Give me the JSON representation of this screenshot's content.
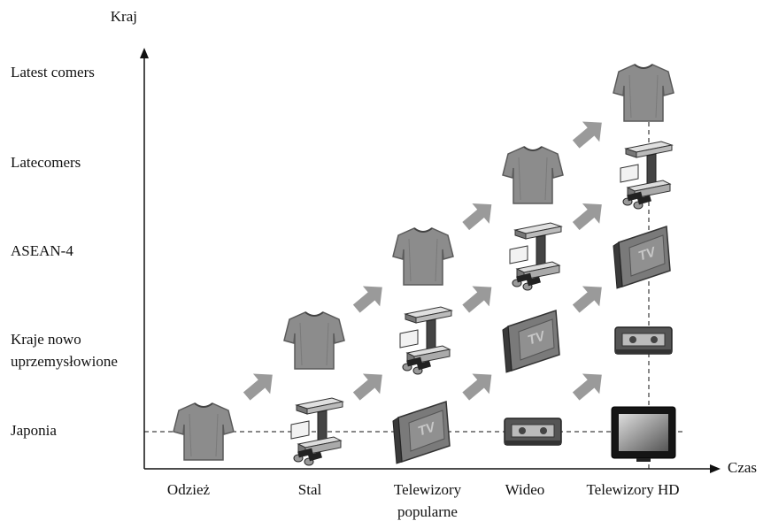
{
  "axes": {
    "y_label": "Kraj",
    "x_label": "Czas"
  },
  "rows": [
    {
      "lines": [
        "Latest comers"
      ]
    },
    {
      "lines": [
        "Latecomers"
      ]
    },
    {
      "lines": [
        "ASEAN-4"
      ]
    },
    {
      "lines": [
        "Kraje nowo",
        "uprzemysłowione"
      ]
    },
    {
      "lines": [
        "Japonia"
      ]
    }
  ],
  "columns": [
    {
      "lines": [
        "Odzież"
      ]
    },
    {
      "lines": [
        "Stal"
      ]
    },
    {
      "lines": [
        "Telewizory",
        "popularne"
      ]
    },
    {
      "lines": [
        "Wideo"
      ]
    },
    {
      "lines": [
        "Telewizory HD"
      ]
    }
  ],
  "icon_text": "TV"
}
